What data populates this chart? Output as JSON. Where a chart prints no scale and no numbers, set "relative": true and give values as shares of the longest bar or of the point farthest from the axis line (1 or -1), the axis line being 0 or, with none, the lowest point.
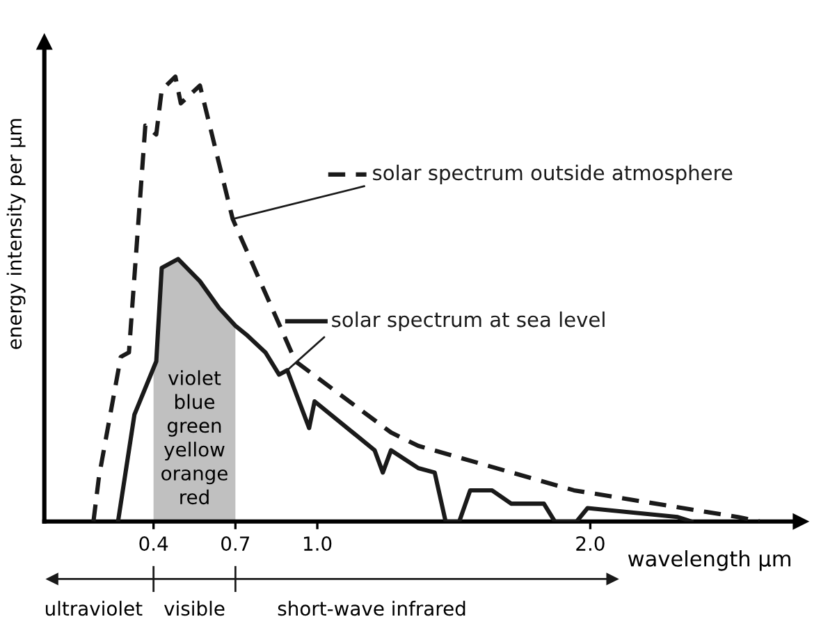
{
  "chart_data": {
    "type": "line",
    "relative": true,
    "xlabel": "wavelength μm",
    "ylabel": "energy intensity per μm",
    "xlim": [
      0,
      2.77
    ],
    "xticks": [
      0.4,
      0.7,
      {
        "value": 1.0,
        "label": "1.0"
      },
      {
        "value": 2.0,
        "label": "2.0"
      }
    ],
    "grid": false,
    "legend": "right",
    "marker": "none",
    "series": [
      {
        "name": "solar spectrum outside atmosphere",
        "color": "#1a1a1a",
        "line_style": "dashed",
        "x": [
          0.18,
          0.2,
          0.28,
          0.31,
          0.37,
          0.41,
          0.43,
          0.48,
          0.5,
          0.57,
          0.69,
          0.92,
          1.27,
          1.37,
          1.94,
          2.54,
          2.62
        ],
        "values": [
          0,
          0.1,
          0.37,
          0.38,
          0.89,
          0.87,
          0.97,
          1.0,
          0.94,
          0.98,
          0.68,
          0.36,
          0.2,
          0.17,
          0.07,
          0.01,
          0
        ]
      },
      {
        "name": "solar spectrum at sea level",
        "color": "#1a1a1a",
        "line_style": "solid",
        "x": [
          0.27,
          0.33,
          0.41,
          0.43,
          0.49,
          0.57,
          0.64,
          0.7,
          0.74,
          0.81,
          0.86,
          0.89,
          0.97,
          0.99,
          1.21,
          1.24,
          1.27,
          1.37,
          1.43,
          1.47,
          1.52,
          1.56,
          1.64,
          1.71,
          1.83,
          1.87,
          1.95,
          1.99,
          2.32,
          2.37
        ],
        "values": [
          0,
          0.24,
          0.36,
          0.57,
          0.59,
          0.54,
          0.48,
          0.44,
          0.42,
          0.38,
          0.33,
          0.34,
          0.21,
          0.27,
          0.16,
          0.11,
          0.16,
          0.12,
          0.11,
          0,
          0,
          0.07,
          0.07,
          0.04,
          0.04,
          0,
          0,
          0.03,
          0.01,
          0
        ]
      }
    ],
    "bands": [
      {
        "axis": "x",
        "from": 0.4,
        "to": 0.7,
        "color": "#c0c0c0",
        "label": "violet\nblue\ngreen\nyellow\norange\nred"
      }
    ],
    "annotations": [
      "ultraviolet",
      "visible",
      "short-wave infrared"
    ]
  }
}
